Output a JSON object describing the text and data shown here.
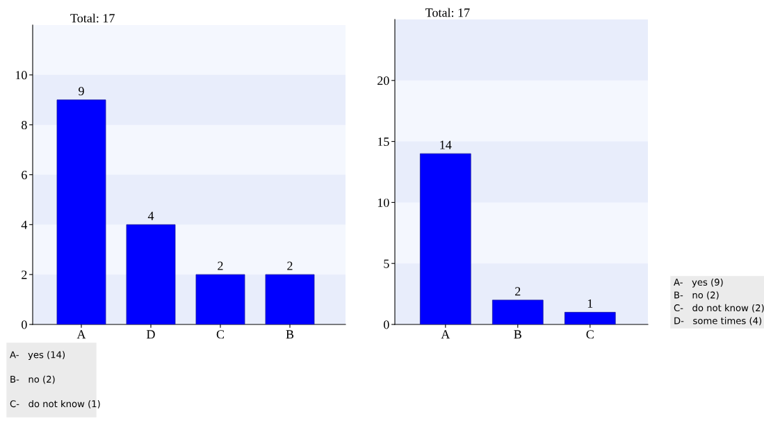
{
  "chart_data": [
    {
      "type": "bar",
      "title": "Total: 17",
      "categories": [
        "A",
        "D",
        "C",
        "B"
      ],
      "values": [
        9,
        4,
        2,
        2
      ],
      "color": "#0000ff",
      "ylim": [
        0,
        12
      ],
      "yticks": [
        0,
        2,
        4,
        6,
        8,
        10
      ],
      "data_labels": true,
      "grid": false,
      "legend": false,
      "bands": [
        {
          "axis": "y",
          "from": 0,
          "to": 2,
          "color": "#e8edfb"
        },
        {
          "axis": "y",
          "from": 4,
          "to": 6,
          "color": "#e8edfb"
        },
        {
          "axis": "y",
          "from": 8,
          "to": 10,
          "color": "#e8edfb"
        }
      ],
      "annotations": [
        "A-   yes (14)",
        "B-   no (2)",
        "C-   do not know (1)"
      ]
    },
    {
      "type": "bar",
      "title": "Total: 17",
      "categories": [
        "A",
        "B",
        "C"
      ],
      "values": [
        14,
        2,
        1
      ],
      "color": "#0000ff",
      "ylim": [
        0,
        25
      ],
      "yticks": [
        0,
        5,
        10,
        15,
        20
      ],
      "data_labels": true,
      "grid": false,
      "legend": false,
      "bands": [
        {
          "axis": "y",
          "from": 0,
          "to": 5,
          "color": "#e8edfb"
        },
        {
          "axis": "y",
          "from": 10,
          "to": 15,
          "color": "#e8edfb"
        },
        {
          "axis": "y",
          "from": 20,
          "to": 25,
          "color": "#e8edfb"
        }
      ],
      "annotations": [
        "A-   yes (9)",
        "B-   no (2)",
        "C-   do not know (2)",
        "D-   some times (4)"
      ]
    }
  ]
}
